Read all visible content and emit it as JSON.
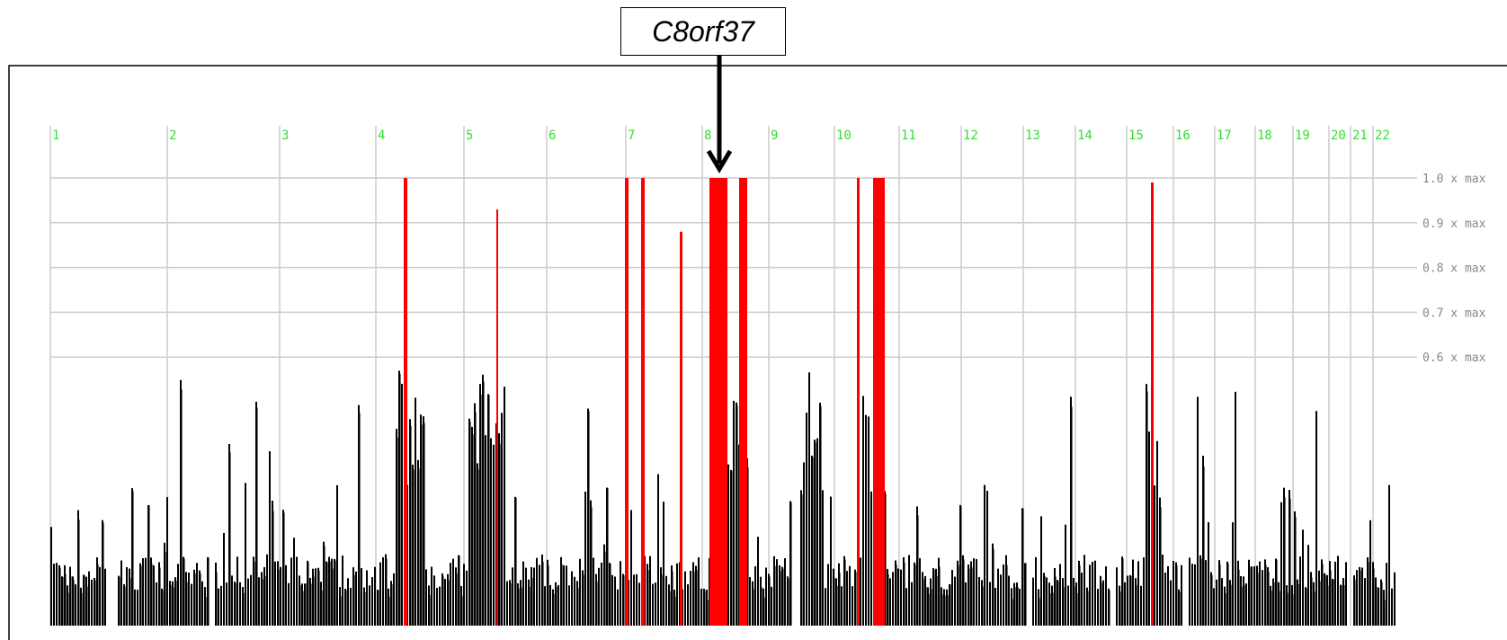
{
  "callout": {
    "gene": "C8orf37"
  },
  "chart_data": {
    "type": "bar",
    "title": "",
    "xlabel": "",
    "ylabel": "",
    "ylim": [
      0,
      1.0
    ],
    "chromosomes": [
      "1",
      "2",
      "3",
      "4",
      "5",
      "6",
      "7",
      "8",
      "9",
      "10",
      "11",
      "12",
      "13",
      "14",
      "15",
      "16",
      "17",
      "18",
      "19",
      "20",
      "21",
      "22"
    ],
    "reference_lines": [
      {
        "value": 1.0,
        "label": "1.0 x max"
      },
      {
        "value": 0.9,
        "label": "0.9 x max"
      },
      {
        "value": 0.8,
        "label": "0.8 x max"
      },
      {
        "value": 0.7,
        "label": "0.7 x max"
      },
      {
        "value": 0.6,
        "label": "0.6 x max"
      }
    ],
    "highlight_color": "#ff0000",
    "background_bar_color": "#000000",
    "highlighted_peaks": [
      {
        "chromosome": "4",
        "value": 1.0
      },
      {
        "chromosome": "5",
        "value": 0.93
      },
      {
        "chromosome": "7",
        "value": 1.0
      },
      {
        "chromosome": "7",
        "value": 1.0
      },
      {
        "chromosome": "7",
        "value": 0.88
      },
      {
        "chromosome": "8",
        "value": 1.0
      },
      {
        "chromosome": "8",
        "value": 1.0
      },
      {
        "chromosome": "10",
        "value": 1.0
      },
      {
        "chromosome": "10",
        "value": 1.0
      },
      {
        "chromosome": "15",
        "value": 0.99
      }
    ],
    "annotation": {
      "text": "C8orf37",
      "chromosome": "8"
    }
  }
}
